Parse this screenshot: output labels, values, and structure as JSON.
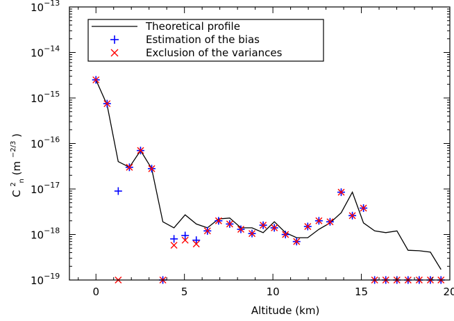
{
  "chart_data": {
    "type": "line",
    "title": "",
    "xlabel": "Altitude (km)",
    "ylabel": {
      "base": "C",
      "superscript": "2",
      "subscript": "n",
      "units_open": " (m",
      "units_exponent": "−2/3",
      "units_close": ")"
    },
    "xlim": [
      -1.5,
      20
    ],
    "ylim": [
      1e-19,
      1e-13
    ],
    "yscale": "log",
    "xticks": [
      0,
      5,
      10,
      15,
      20
    ],
    "xtick_labels": [
      "0",
      "5",
      "10",
      "15",
      "20"
    ],
    "yticks": [
      {
        "value": 1e-13,
        "mantissa": "10",
        "exponent": "−13"
      },
      {
        "value": 1e-14,
        "mantissa": "10",
        "exponent": "−14"
      },
      {
        "value": 1e-15,
        "mantissa": "10",
        "exponent": "−15"
      },
      {
        "value": 1e-16,
        "mantissa": "10",
        "exponent": "−16"
      },
      {
        "value": 1e-17,
        "mantissa": "10",
        "exponent": "−17"
      },
      {
        "value": 1e-18,
        "mantissa": "10",
        "exponent": "−18"
      },
      {
        "value": 1e-19,
        "mantissa": "10",
        "exponent": "−19"
      }
    ],
    "grid": false,
    "legend_position": "top-left",
    "series": [
      {
        "name": "Theoretical profile",
        "kind": "line",
        "color": "#000000",
        "x": [
          0,
          0.63,
          1.26,
          1.89,
          2.52,
          3.15,
          3.78,
          4.41,
          5.04,
          5.67,
          6.3,
          6.93,
          7.56,
          8.19,
          8.82,
          9.45,
          10.08,
          10.71,
          11.34,
          11.97,
          12.6,
          13.23,
          13.86,
          14.49,
          15.12,
          15.75,
          16.38,
          17.01,
          17.64,
          18.27,
          18.9,
          19.5
        ],
        "y": [
          2.5e-15,
          7e-16,
          4e-17,
          3e-17,
          7e-17,
          2.8e-17,
          1.9e-18,
          1.4e-18,
          2.7e-18,
          1.7e-18,
          1.4e-18,
          2.2e-18,
          2.3e-18,
          1.4e-18,
          1.4e-18,
          1.1e-18,
          1.9e-18,
          1.1e-18,
          8.5e-19,
          8.5e-19,
          1.3e-18,
          1.8e-18,
          3e-18,
          8.5e-18,
          1.8e-18,
          1.2e-18,
          1.1e-18,
          1.2e-18,
          4.5e-19,
          4.4e-19,
          4.1e-19,
          1.7e-19
        ]
      },
      {
        "name": "Estimation of the bias",
        "kind": "plus",
        "color": "#0000ff",
        "x": [
          0,
          0.63,
          1.26,
          1.89,
          2.52,
          3.15,
          3.78,
          4.41,
          5.04,
          5.67,
          6.3,
          6.93,
          7.56,
          8.19,
          8.82,
          9.45,
          10.08,
          10.71,
          11.34,
          11.97,
          12.6,
          13.23,
          13.86,
          14.49,
          15.12,
          15.75,
          16.38,
          17.01,
          17.64,
          18.27,
          18.9,
          19.5
        ],
        "y": [
          2.5e-15,
          7.5e-16,
          9e-18,
          3e-17,
          7e-17,
          2.8e-17,
          1e-19,
          8e-19,
          9.5e-19,
          7.5e-19,
          1.2e-18,
          2e-18,
          1.7e-18,
          1.3e-18,
          1.05e-18,
          1.6e-18,
          1.4e-18,
          1e-18,
          7e-19,
          1.5e-18,
          2e-18,
          1.9e-18,
          8.5e-18,
          2.6e-18,
          3.8e-18,
          1e-19,
          1e-19,
          1e-19,
          1e-19,
          1e-19,
          1e-19,
          1e-19
        ]
      },
      {
        "name": "Exclusion of the variances",
        "kind": "cross",
        "color": "#ff0000",
        "x": [
          0,
          0.63,
          1.26,
          1.89,
          2.52,
          3.15,
          3.78,
          4.41,
          5.04,
          5.67,
          6.3,
          6.93,
          7.56,
          8.19,
          8.82,
          9.45,
          10.08,
          10.71,
          11.34,
          11.97,
          12.6,
          13.23,
          13.86,
          14.49,
          15.12,
          15.75,
          16.38,
          17.01,
          17.64,
          18.27,
          18.9,
          19.5
        ],
        "y": [
          2.5e-15,
          7.5e-16,
          1e-19,
          3e-17,
          7e-17,
          2.8e-17,
          1e-19,
          5.8e-19,
          7.5e-19,
          6.2e-19,
          1.2e-18,
          2e-18,
          1.7e-18,
          1.3e-18,
          1.05e-18,
          1.6e-18,
          1.4e-18,
          1e-18,
          7e-19,
          1.5e-18,
          2e-18,
          1.9e-18,
          8.5e-18,
          2.6e-18,
          3.8e-18,
          1e-19,
          1e-19,
          1e-19,
          1e-19,
          1e-19,
          1e-19,
          1e-19
        ]
      }
    ]
  }
}
